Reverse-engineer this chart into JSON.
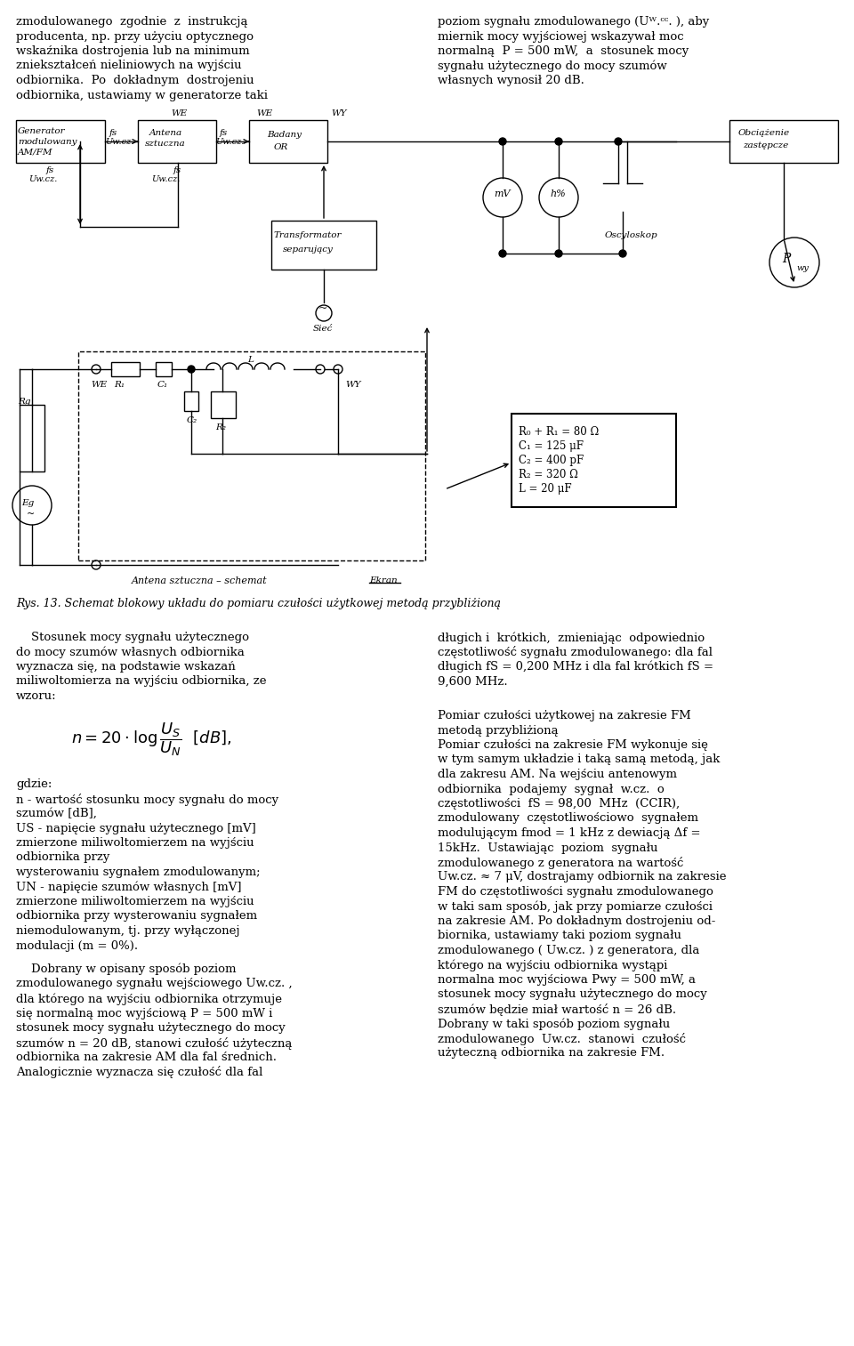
{
  "bg_color": "#ffffff",
  "text_color": "#000000",
  "top_left_text": "zmodulowanego  zgodnie  z  instrukcją\nproducenta, np. przy użyciu optycznego\nwskaźnika dostrojenia lub na minimum\nzniekształceń nieliniowych na wyjściu\nodbiornika.  Po  dokładnym  dostrojeniu\nodbiornika, ustawiamy w generatorze taki",
  "top_right_text": "poziom sygnału zmodulowanego (Uᵂ.ᶜᶜ. ), aby\nmiernik mocy wyjściowej wskazywał moc\nnormalną  P = 500 mW,  a  stosunek mocy\nsygnału użytecznego do mocy szumów\nwłasnych wynosił 20 dB.",
  "fig_caption": "Rys. 13. Schemat blokowy układu do pomiaru czułości użytkowej metodą przybliżioną",
  "bottom_left_text": "    Stosunek mocy sygnału użytecznego\ndo mocy szumów własnych odbiornika\nwyznacza się, na podstawie wskazań\nmiliwoltomierza na wyjściu odbiornika, ze\nwzoru:",
  "formula_details": "gdzie:\nn - wartość stosunku mocy sygnału do mocy\nszumów [dB],\nUS - napięcie sygnału użytecznego [mV]\nzmierzone miliwoltomierzem na wyjściu\nodbiornika przy\nwysterowaniu sygnałem zmodulowanym;\nUN - napięcie szumów własnych [mV]\nzmierzone miliwoltomierzem na wyjściu\nodbiornika przy wysterowaniu sygnałem\nniemodulowanym, tj. przy wyłączonej\nmodulacji (m = 0%).",
  "indented_text": "    Dobrany w opisany sposób poziom\nzmodulowanego sygnału wejściowego Uw.cz. ,\ndla którego na wyjściu odbiornika otrzymuje\nsię normalną moc wyjściową P = 500 mW i\nstosunek mocy sygnału użytecznego do mocy\nszumów n = 20 dB, stanowi czułość użyteczną\nodbiornika na zakresie AM dla fal średnich.\nAnalogicznie wyznacza się czułość dla fal",
  "right_col_text1": "długich i  krótkich,  zmieniając  odpowiednio\nczęstotliwość sygnału zmodulowanego: dla fal\ndługich fS = 0,200 MHz i dla fal krótkich fS =\n9,600 MHz.",
  "right_col_text2": "Pomiar czułości użytkowej na zakresie FM\nmetodą przybliżioną\nPomiar czułości na zakresie FM wykonuje się\nw tym samym układzie i taką samą metodą, jak\ndla zakresu AM. Na wejściu antenowym\nodbiornika  podajemy  sygnał  w.cz.  o\nczęstotliwości  fS = 98,00  MHz  (CCIR),\nzmodulowany  częstotliwościowo  sygnałem\nmodulującym fmod = 1 kHz z dewiacją Δf =\n15kHz.  Ustawiając  poziom  sygnału\nzmodulowanego z generatora na wartość\nUw.cz. ≈ 7 μV, dostrajamy odbiornik na zakresie\nFM do częstotliwości sygnału zmodulowanego\nw taki sam sposób, jak przy pomiarze czułości\nna zakresie AM. Po dokładnym dostrojeniu od-\nbiornika, ustawiamy taki poziom sygnału\nzmodulowanego ( Uw.cz. ) z generatora, dla\nktórego na wyjściu odbiornika wystąpi\nnormalna moc wyjściowa Pwy = 500 mW, a\nstosunek mocy sygnału użytecznego do mocy\nszumów będzie miał wartość n = 26 dB.\nDobrany w taki sposób poziom sygnału\nzmodulowanego  Uw.cz.  stanowi  czułość\nużyteczną odbiornika na zakresie FM."
}
